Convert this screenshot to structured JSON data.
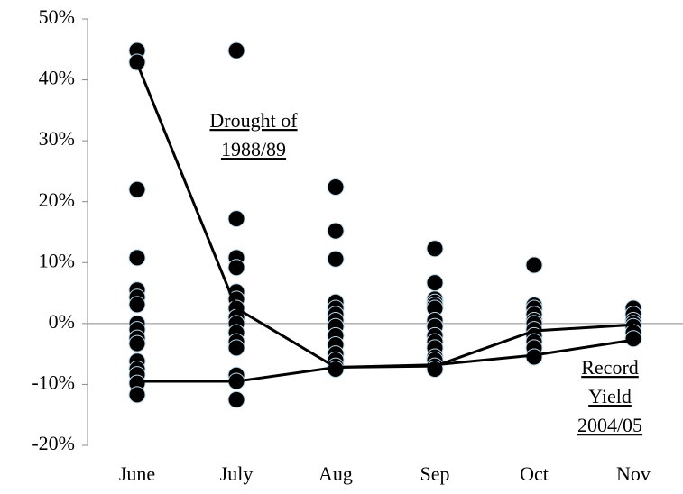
{
  "chart_data": {
    "type": "scatter",
    "categories": [
      "June",
      "July",
      "Aug",
      "Sep",
      "Oct",
      "Nov"
    ],
    "values": [
      [
        44.8,
        42.9,
        22,
        10.8,
        5.5,
        4.3,
        3.1,
        0,
        -1,
        -2.4,
        -3.3,
        -6.2,
        -7.5,
        -8.4,
        -9.8,
        -11.7
      ],
      [
        44.8,
        17.2,
        10.8,
        9.2,
        5.2,
        4,
        2.5,
        1,
        0,
        -1.5,
        -3,
        -4,
        -8.5,
        -9.5,
        -12.5
      ],
      [
        22.4,
        15.2,
        10.6,
        3.5,
        2.5,
        1.5,
        0.5,
        -0.5,
        -2,
        -3.5,
        -5,
        -6,
        -7,
        -7.5
      ],
      [
        12.3,
        6.7,
        4,
        3.5,
        3,
        2.5,
        0.5,
        -0.5,
        -2,
        -3,
        -4,
        -5.5,
        -6,
        -7,
        -7.5
      ],
      [
        9.6,
        3,
        2.5,
        1.5,
        0.5,
        0,
        -1,
        -2,
        -3,
        -4,
        -5.5
      ],
      [
        2.5,
        1.5,
        0.5,
        0,
        -0.5,
        -1.5,
        -2.5
      ]
    ],
    "color": "#000000",
    "lines": [
      {
        "label": [
          "Drought of",
          "1988/89"
        ],
        "color": "#000000",
        "values": [
          42.7,
          2.5,
          -7.2,
          -7,
          -1.2,
          -0.2
        ]
      },
      {
        "label": [
          "Record",
          "Yield",
          "2004/05"
        ],
        "color": "#000000",
        "values": [
          -9.5,
          -9.5,
          -7.2,
          -6.8,
          -5.2,
          -2.7
        ]
      }
    ],
    "ylim": [
      -20,
      50
    ],
    "yticks": [
      {
        "value": -20,
        "label": "-20%"
      },
      {
        "value": -10,
        "label": "-10%"
      },
      {
        "value": 0,
        "label": "0%"
      },
      {
        "value": 10,
        "label": "10%"
      },
      {
        "value": 20,
        "label": "20%"
      },
      {
        "value": 30,
        "label": "30%"
      },
      {
        "value": 40,
        "label": "40%"
      },
      {
        "value": 50,
        "label": "50%"
      }
    ],
    "grid": false
  }
}
